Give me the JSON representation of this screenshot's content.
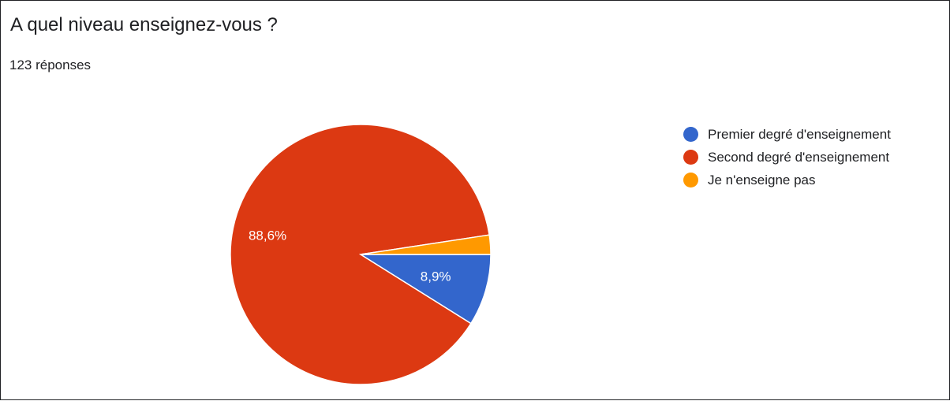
{
  "header": {
    "title": "A quel niveau enseignez-vous ?",
    "responses": "123 réponses"
  },
  "chart_data": {
    "type": "pie",
    "title": "A quel niveau enseignez-vous ?",
    "categories": [
      "Premier degré d'enseignement",
      "Second degré d'enseignement",
      "Je n'enseigne pas"
    ],
    "values": [
      8.9,
      88.6,
      2.4
    ],
    "value_labels": [
      "8,9%",
      "88,6%",
      ""
    ],
    "colors": [
      "#3366cc",
      "#dc3912",
      "#ff9900"
    ],
    "legend_position": "right",
    "start_angle_deg": 90,
    "direction": "clockwise"
  }
}
